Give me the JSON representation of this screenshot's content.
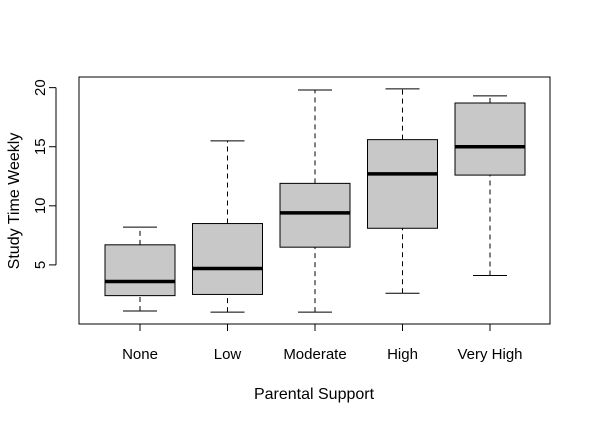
{
  "chart_data": {
    "type": "boxplot",
    "title": "",
    "xlabel": "Parental Support",
    "ylabel": "Study Time Weekly",
    "categories": [
      "None",
      "Low",
      "Moderate",
      "High",
      "Very High"
    ],
    "boxes": [
      {
        "category": "None",
        "whisker_low": 1.1,
        "q1": 2.4,
        "median": 3.6,
        "q3": 6.7,
        "whisker_high": 8.2
      },
      {
        "category": "Low",
        "whisker_low": 1.0,
        "q1": 2.5,
        "median": 4.7,
        "q3": 8.5,
        "whisker_high": 15.5
      },
      {
        "category": "Moderate",
        "whisker_low": 1.0,
        "q1": 6.5,
        "median": 9.4,
        "q3": 11.9,
        "whisker_high": 19.8
      },
      {
        "category": "High",
        "whisker_low": 2.6,
        "q1": 8.1,
        "median": 12.7,
        "q3": 15.6,
        "whisker_high": 19.9
      },
      {
        "category": "Very High",
        "whisker_low": 4.1,
        "q1": 12.6,
        "median": 15.0,
        "q3": 18.7,
        "whisker_high": 19.3
      }
    ],
    "yticks": [
      5,
      10,
      15,
      20
    ],
    "ylim": [
      0.0,
      20.9
    ],
    "box_fill": "#c8c8c8",
    "grid": false,
    "legend": "none"
  }
}
